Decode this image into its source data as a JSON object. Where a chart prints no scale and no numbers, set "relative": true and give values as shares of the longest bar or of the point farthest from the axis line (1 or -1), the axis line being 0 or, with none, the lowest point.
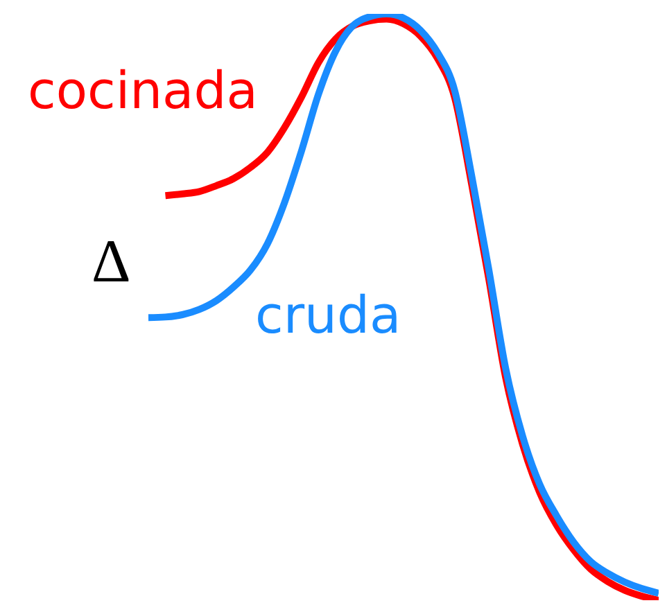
{
  "chart_data": {
    "type": "line",
    "relative": true,
    "categories": [
      null,
      null,
      null,
      null,
      null,
      null,
      null,
      null,
      null,
      null,
      null,
      null,
      null,
      null,
      null,
      null,
      null,
      null,
      null,
      null,
      null,
      null,
      null,
      null,
      null,
      null,
      null,
      null,
      null,
      null,
      null
    ],
    "series": [
      {
        "name": "cocinada",
        "color": "#ff0000",
        "values": [
          null,
          0.69,
          0.693,
          0.697,
          0.707,
          0.719,
          0.738,
          0.764,
          0.806,
          0.858,
          0.917,
          0.957,
          0.979,
          0.988,
          0.991,
          0.983,
          0.962,
          0.924,
          0.858,
          0.71,
          0.55,
          0.38,
          0.266,
          0.184,
          0.128,
          0.086,
          0.053,
          0.032,
          0.017,
          0.007,
          0
        ]
      },
      {
        "name": "cruda",
        "color": "#1a8cff",
        "values": [
          0.482,
          0.483,
          0.487,
          0.496,
          0.511,
          0.534,
          0.563,
          0.608,
          0.678,
          0.766,
          0.863,
          0.936,
          0.979,
          0.995,
          1,
          0.993,
          0.972,
          0.934,
          0.87,
          0.725,
          0.566,
          0.396,
          0.28,
          0.198,
          0.144,
          0.099,
          0.066,
          0.046,
          0.031,
          0.02,
          0.012
        ]
      }
    ],
    "annotations": [
      "Δ"
    ]
  }
}
